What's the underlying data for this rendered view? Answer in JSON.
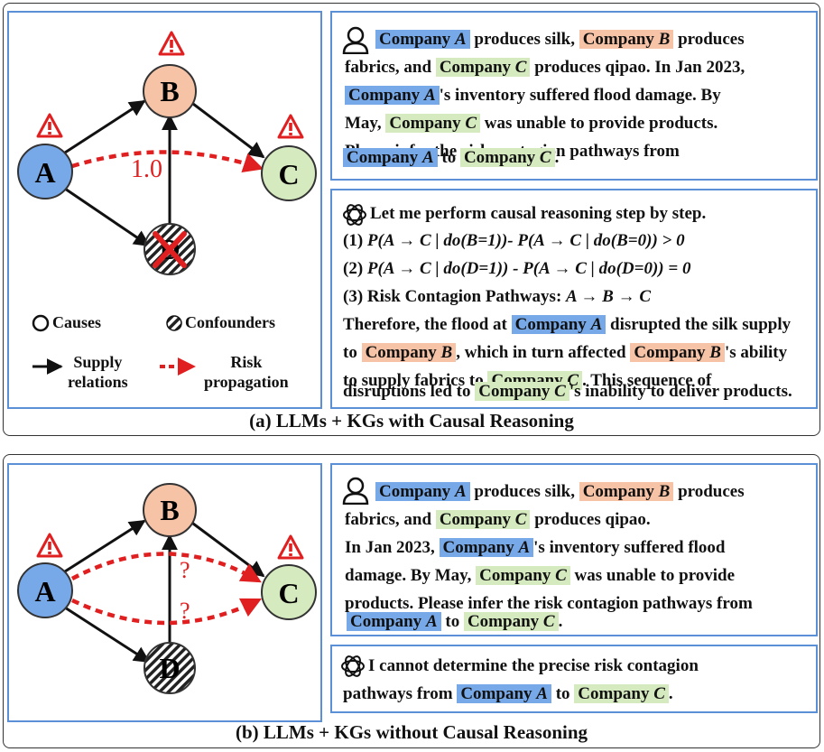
{
  "colors": {
    "company_a": "#77a8e8",
    "company_b": "#f6c3a7",
    "company_c": "#d5eabf",
    "frame_blue": "#5b8fd6",
    "risk_red": "#e02020"
  },
  "nodes": {
    "a": "A",
    "b": "B",
    "c": "C",
    "d": "D"
  },
  "entities": {
    "a": "Company ",
    "a_letter": "A",
    "b": "Company ",
    "b_letter": "B",
    "c": "Company ",
    "c_letter": "C"
  },
  "panel_a": {
    "caption": "(a) LLMs + KGs with Causal Reasoning",
    "edge_weight": "1.0",
    "legend": {
      "causes": "Causes",
      "confounders": "Confounders",
      "supply_1": "Supply",
      "supply_2": "relations",
      "risk_1": "Risk",
      "risk_2": "propagation"
    },
    "user_text": {
      "l1_mid": " produces silk, ",
      "l1_end": " produces",
      "l2_start": "fabrics, and ",
      "l2_end": " produces qipao. In Jan 2023,",
      "l3_end": "'s inventory suffered flood damage. By",
      "l4_start": "May, ",
      "l4_end": " was unable to provide products.",
      "l5": "Please infer the risk contagion pathways from",
      "l6_mid": " to ",
      "l6_end": "."
    },
    "answer": {
      "intro": " Let me perform causal reasoning step by step.",
      "step1_label": "(1) ",
      "step1_expr": "P(A → C | do(B=1))- P(A → C | do(B=0)) > 0",
      "step2_label": "(2) ",
      "step2_expr": "P(A → C | do(D=1)) - P(A → C | do(D=0)) = 0",
      "step3_label": "(3) Risk Contagion Pathways: ",
      "step3_expr": "A → B → C",
      "t1_start": "Therefore, the flood at ",
      "t1_end": " disrupted the silk supply",
      "t2_start": "to ",
      "t2_mid": ", which in turn affected ",
      "t2_end": "'s ability",
      "t3_start": "to supply fabrics to ",
      "t3_end": ". This sequence of",
      "t4_start": "disruptions led to ",
      "t4_end": "'s inability to deliver products."
    }
  },
  "panel_b": {
    "caption": "(b) LLMs + KGs without Causal Reasoning",
    "question_mark": "?",
    "user_text": {
      "l1_mid": " produces silk, ",
      "l1_end": " produces",
      "l2_start": "fabrics, and ",
      "l2_end": " produces qipao.",
      "l3_start": "In Jan 2023, ",
      "l3_end": "'s inventory suffered flood",
      "l4_start": "damage. By May, ",
      "l4_end": " was unable to provide",
      "l5": "products. Please infer the risk contagion pathways from",
      "l6_mid": " to ",
      "l6_end": "."
    },
    "answer": {
      "l1": "I cannot determine the precise risk contagion",
      "l2_start": "pathways from ",
      "l2_mid": " to ",
      "l2_end": "."
    }
  }
}
